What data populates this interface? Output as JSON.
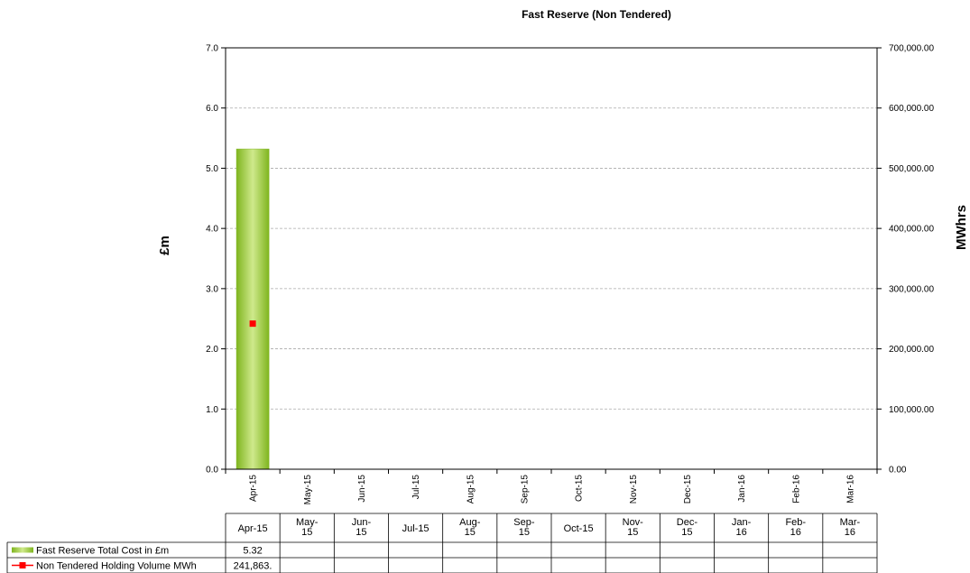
{
  "chart_data": {
    "type": "bar",
    "title": "Fast Reserve (Non Tendered)",
    "ylabel": "£m",
    "y2label": "MWhrs",
    "categories": [
      "Apr-15",
      "May-15",
      "Jun-15",
      "Jul-15",
      "Aug-15",
      "Sep-15",
      "Oct-15",
      "Nov-15",
      "Dec-15",
      "Jan-16",
      "Feb-16",
      "Mar-16"
    ],
    "table_headers": [
      [
        "Apr-15"
      ],
      [
        "May-",
        "15"
      ],
      [
        "Jun-",
        "15"
      ],
      [
        "Jul-15"
      ],
      [
        "Aug-",
        "15"
      ],
      [
        "Sep-",
        "15"
      ],
      [
        "Oct-15"
      ],
      [
        "Nov-",
        "15"
      ],
      [
        "Dec-",
        "15"
      ],
      [
        "Jan-",
        "16"
      ],
      [
        "Feb-",
        "16"
      ],
      [
        "Mar-",
        "16"
      ]
    ],
    "ylim": [
      0,
      7
    ],
    "y_ticks": [
      "0.0",
      "1.0",
      "2.0",
      "3.0",
      "4.0",
      "5.0",
      "6.0",
      "7.0"
    ],
    "y2lim": [
      0,
      700000
    ],
    "y2_ticks": [
      "0.00",
      "100,000.00",
      "200,000.00",
      "300,000.00",
      "400,000.00",
      "500,000.00",
      "600,000.00",
      "700,000.00"
    ],
    "grid": true,
    "legend_placement": "data-table",
    "series": [
      {
        "name": "Fast Reserve Total Cost in £m",
        "kind": "bar",
        "axis": "left",
        "values": [
          5.32,
          null,
          null,
          null,
          null,
          null,
          null,
          null,
          null,
          null,
          null,
          null
        ],
        "labels": [
          "5.32",
          "",
          "",
          "",
          "",
          "",
          "",
          "",
          "",
          "",
          "",
          ""
        ],
        "color": "#9acd32"
      },
      {
        "name": "Non Tendered Holding Volume MWh",
        "kind": "line",
        "axis": "right",
        "values": [
          241863,
          null,
          null,
          null,
          null,
          null,
          null,
          null,
          null,
          null,
          null,
          null
        ],
        "labels": [
          "241,863.",
          "",
          "",
          "",
          "",
          "",
          "",
          "",
          "",
          "",
          "",
          ""
        ],
        "color": "#ff0000"
      }
    ]
  }
}
